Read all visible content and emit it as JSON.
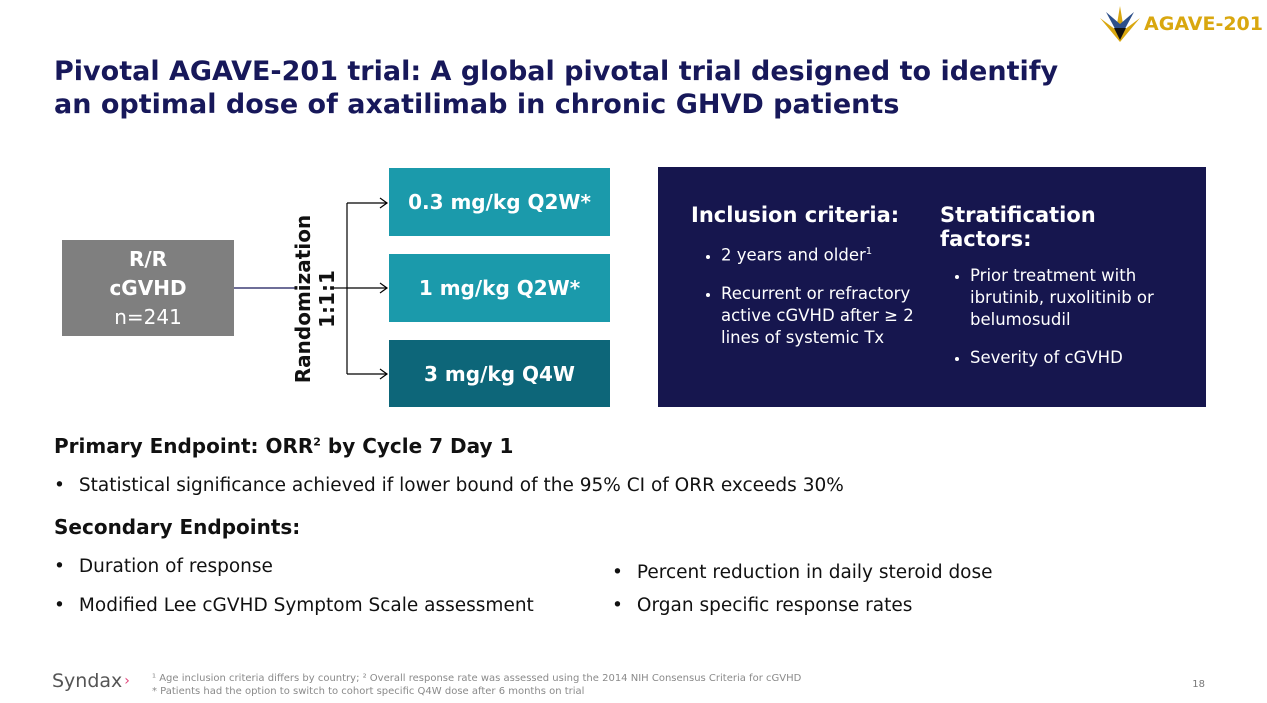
{
  "header": {
    "title_line1": "Pivotal AGAVE-201 trial: A global pivotal trial designed to identify",
    "title_line2": "an optimal dose of axatilimab in chronic GHVD patients",
    "logo_text": "AGAVE-201"
  },
  "diagram": {
    "population": [
      "R/R",
      "cGVHD",
      "n=241"
    ],
    "ratio": "1:1:1",
    "randomization": "Randomization",
    "arms": [
      {
        "label": "0.3 mg/kg Q2W*",
        "color": "#1b9aab"
      },
      {
        "label": "1 mg/kg Q2W*",
        "color": "#1b9aab"
      },
      {
        "label": "3 mg/kg Q4W",
        "color": "#0d6679"
      }
    ]
  },
  "criteria": {
    "inclusion_title": "Inclusion criteria:",
    "inclusion": [
      "2 years and older",
      "Recurrent or refractory active cGVHD after ≥ 2 lines of systemic Tx"
    ],
    "inclusion_sup": "1",
    "stratification_title": "Stratification factors:",
    "stratification": [
      "Prior treatment with ibrutinib, ruxolitinib or belumosudil",
      "Severity of cGVHD"
    ]
  },
  "primary": {
    "title_a": "Primary Endpoint: ORR",
    "sup": "2",
    "title_b": " by Cycle 7 Day 1",
    "bullet": "Statistical significance achieved if lower bound of the 95% CI of ORR exceeds 30%"
  },
  "secondary": {
    "title": "Secondary Endpoints:",
    "left": [
      "Duration of response",
      "Modified Lee cGVHD Symptom Scale assessment"
    ],
    "right": [
      "Percent reduction in daily steroid dose",
      "Organ specific response rates"
    ]
  },
  "footer": {
    "brand": "Syndax",
    "note1": "¹ Age inclusion criteria differs by country; ² Overall response rate was assessed using the 2014 NIH Consensus Criteria for cGVHD",
    "note2": "* Patients had the option to switch to cohort specific Q4W dose after 6 months on trial",
    "page": "18"
  }
}
